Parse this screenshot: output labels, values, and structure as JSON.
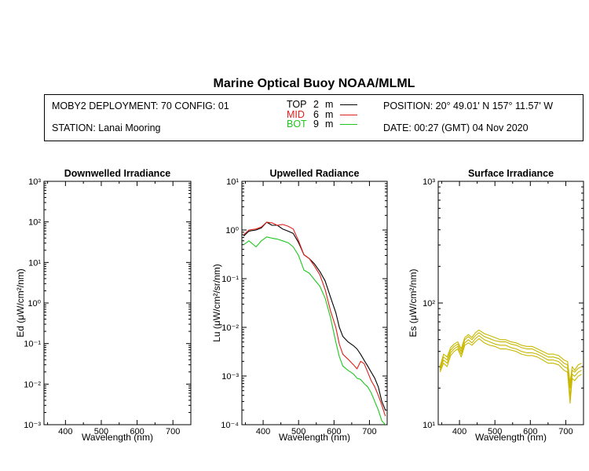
{
  "page_title": "Marine Optical Buoy NOAA/MLML",
  "info": {
    "deployment": "MOBY2 DEPLOYMENT: 70 CONFIG: 01",
    "station": "STATION: Lanai Mooring",
    "position": "POSITION: 20° 49.01' N   157° 11.57' W",
    "date": "DATE: 00:27 (GMT) 04 Nov 2020",
    "legend": [
      {
        "name": "TOP",
        "depth": "2",
        "unit": "m",
        "color": "#000000"
      },
      {
        "name": "MID",
        "depth": "6",
        "unit": "m",
        "color": "#e0201a"
      },
      {
        "name": "BOT",
        "depth": "9",
        "unit": "m",
        "color": "#1ec81e"
      }
    ]
  },
  "chart_data": [
    {
      "type": "line",
      "title": "Downwelled Irradiance",
      "xlabel": "Wavelength (nm)",
      "ylabel": "Ed  (μW/cm²/nm)",
      "xlim": [
        340,
        750
      ],
      "ylim": [
        0.001,
        1000
      ],
      "yscale": "log",
      "xticks": [
        "400",
        "500",
        "600",
        "700"
      ],
      "yticks": [
        "10⁻³",
        "10⁻²",
        "10⁻¹",
        "10⁰",
        "10¹",
        "10²",
        "10³"
      ],
      "series": []
    },
    {
      "type": "line",
      "title": "Upwelled Radiance",
      "xlabel": "Wavelength (nm)",
      "ylabel": "Lu  (μW/cm²/sr/nm)",
      "xlim": [
        340,
        750
      ],
      "ylim": [
        0.0001,
        10
      ],
      "yscale": "log",
      "xticks": [
        "400",
        "500",
        "600",
        "700"
      ],
      "yticks": [
        "10⁻⁴",
        "10⁻³",
        "10⁻²",
        "10⁻¹",
        "10⁰",
        "10¹"
      ],
      "series": [
        {
          "name": "TOP",
          "color": "#000000",
          "x": [
            345,
            360,
            380,
            395,
            410,
            425,
            440,
            455,
            470,
            485,
            500,
            515,
            530,
            545,
            560,
            575,
            590,
            605,
            615,
            625,
            640,
            655,
            665,
            675,
            685,
            695,
            705,
            715,
            725,
            735,
            745
          ],
          "y": [
            0.75,
            0.95,
            1.0,
            1.1,
            1.45,
            1.25,
            1.25,
            1.05,
            0.95,
            0.85,
            0.55,
            0.31,
            0.26,
            0.2,
            0.14,
            0.09,
            0.042,
            0.02,
            0.01,
            0.0065,
            0.005,
            0.0042,
            0.0036,
            0.0028,
            0.0021,
            0.0016,
            0.0012,
            0.0009,
            0.0006,
            0.0003,
            0.0002
          ]
        },
        {
          "name": "MID",
          "color": "#e0201a",
          "x": [
            345,
            360,
            380,
            395,
            410,
            425,
            440,
            455,
            470,
            485,
            500,
            515,
            530,
            545,
            560,
            575,
            590,
            605,
            615,
            625,
            640,
            655,
            665,
            675,
            685,
            695,
            705,
            715,
            725,
            735,
            745
          ],
          "y": [
            0.8,
            1.0,
            1.05,
            1.15,
            1.45,
            1.4,
            1.25,
            1.3,
            1.2,
            1.05,
            0.6,
            0.31,
            0.26,
            0.18,
            0.12,
            0.06,
            0.022,
            0.01,
            0.0045,
            0.0028,
            0.0022,
            0.0017,
            0.0014,
            0.002,
            0.0018,
            0.0012,
            0.0008,
            0.0006,
            0.0004,
            0.00025,
            0.00015
          ]
        },
        {
          "name": "BOT",
          "color": "#1ec81e",
          "x": [
            345,
            360,
            380,
            395,
            410,
            425,
            440,
            455,
            470,
            485,
            500,
            515,
            530,
            545,
            560,
            575,
            590,
            605,
            615,
            625,
            640,
            655,
            665,
            675,
            685,
            695,
            705,
            715,
            725,
            735,
            745
          ],
          "y": [
            0.5,
            0.6,
            0.45,
            0.6,
            0.72,
            0.68,
            0.65,
            0.6,
            0.55,
            0.45,
            0.3,
            0.15,
            0.13,
            0.095,
            0.07,
            0.04,
            0.016,
            0.005,
            0.0025,
            0.0016,
            0.0013,
            0.0011,
            0.0009,
            0.00085,
            0.0007,
            0.0006,
            0.00045,
            0.0003,
            0.0002,
            0.00012,
            0.0001
          ]
        }
      ]
    },
    {
      "type": "line",
      "title": "Surface Irradiance",
      "xlabel": "Wavelength (nm)",
      "ylabel": "Es  (μW/cm²/nm)",
      "xlim": [
        340,
        750
      ],
      "ylim": [
        10,
        1000
      ],
      "yscale": "log",
      "xticks": [
        "400",
        "500",
        "600",
        "700"
      ],
      "yticks": [
        "10¹",
        "10²",
        "10³"
      ],
      "series": [
        {
          "color": "#c8b800",
          "x": [
            345,
            355,
            365,
            375,
            385,
            395,
            405,
            415,
            425,
            435,
            445,
            455,
            470,
            485,
            500,
            515,
            530,
            545,
            560,
            575,
            590,
            605,
            620,
            635,
            650,
            665,
            680,
            695,
            705,
            712,
            718,
            725,
            735,
            745
          ],
          "y": [
            30,
            38,
            36,
            43,
            46,
            48,
            42,
            52,
            55,
            52,
            57,
            60,
            56,
            54,
            52,
            50,
            50,
            48,
            47,
            45,
            44,
            44,
            42,
            40,
            38,
            38,
            37,
            34,
            33,
            22,
            30,
            28,
            31,
            32
          ]
        },
        {
          "color": "#c8b800",
          "x": [
            345,
            355,
            365,
            375,
            385,
            395,
            405,
            415,
            425,
            435,
            445,
            455,
            470,
            485,
            500,
            515,
            530,
            545,
            560,
            575,
            590,
            605,
            620,
            635,
            650,
            665,
            680,
            695,
            705,
            712,
            718,
            725,
            735,
            745
          ],
          "y": [
            29,
            36,
            34,
            41,
            44,
            46,
            40,
            50,
            53,
            50,
            54,
            57,
            53,
            51,
            49,
            48,
            48,
            46,
            45,
            43,
            42,
            42,
            40,
            38,
            36,
            36,
            35,
            32,
            31,
            20,
            28,
            27,
            29,
            30
          ]
        },
        {
          "color": "#c8b800",
          "x": [
            345,
            355,
            365,
            375,
            385,
            395,
            405,
            415,
            425,
            435,
            445,
            455,
            470,
            485,
            500,
            515,
            530,
            545,
            560,
            575,
            590,
            605,
            620,
            635,
            650,
            665,
            680,
            695,
            705,
            712,
            718,
            725,
            735,
            745
          ],
          "y": [
            28,
            34,
            32,
            39,
            42,
            44,
            38,
            47,
            50,
            47,
            51,
            54,
            50,
            48,
            46,
            45,
            45,
            43,
            42,
            40,
            39,
            39,
            38,
            36,
            34,
            34,
            33,
            30,
            29,
            17,
            26,
            25,
            27,
            28
          ]
        },
        {
          "color": "#c8b800",
          "x": [
            345,
            355,
            365,
            375,
            385,
            395,
            405,
            415,
            425,
            435,
            445,
            455,
            470,
            485,
            500,
            515,
            530,
            545,
            560,
            575,
            590,
            605,
            620,
            635,
            650,
            665,
            680,
            695,
            705,
            712,
            718,
            725,
            735,
            745
          ],
          "y": [
            27,
            32,
            30,
            37,
            40,
            42,
            36,
            45,
            47,
            45,
            48,
            51,
            47,
            45,
            44,
            42,
            42,
            41,
            40,
            38,
            37,
            37,
            36,
            34,
            32,
            32,
            31,
            28,
            27,
            15,
            24,
            23,
            25,
            26
          ]
        }
      ]
    }
  ]
}
